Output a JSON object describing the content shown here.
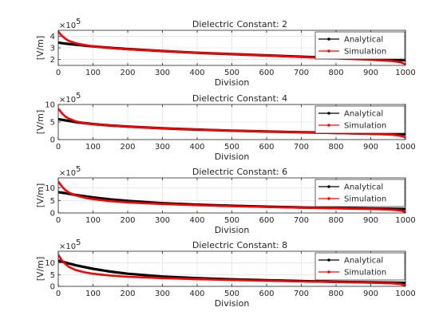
{
  "colors": {
    "analytical": "#000000",
    "simulation": "#ff0000",
    "grid": "#dcdcdc",
    "axes": "#262626",
    "background": "#ffffff"
  },
  "chart_data": [
    {
      "type": "line",
      "title": "Dielectric Constant: 2",
      "xlabel": "Division",
      "ylabel": "[V/m]",
      "y_exponent_label": "×10",
      "y_exponent": "5",
      "xlim": [
        0,
        1000
      ],
      "ylim": [
        1.5,
        4.5
      ],
      "xticks": [
        "0",
        "100",
        "200",
        "300",
        "400",
        "500",
        "600",
        "700",
        "800",
        "900",
        "1000"
      ],
      "yticks": [
        "2",
        "3",
        "4"
      ],
      "grid": true,
      "legend_position": "top-right",
      "legend": [
        "Analytical",
        "Simulation"
      ],
      "series": [
        {
          "name": "Analytical",
          "x": [
            0,
            25,
            50,
            100,
            150,
            200,
            300,
            400,
            500,
            600,
            700,
            800,
            900,
            1000
          ],
          "values": [
            3.45,
            3.35,
            3.27,
            3.12,
            3.0,
            2.9,
            2.73,
            2.58,
            2.46,
            2.35,
            2.24,
            2.13,
            2.03,
            1.93
          ]
        },
        {
          "name": "Simulation",
          "x": [
            0,
            5,
            10,
            20,
            30,
            50,
            75,
            100,
            150,
            200,
            300,
            400,
            500,
            600,
            700,
            800,
            900,
            960,
            985,
            995,
            1000
          ],
          "values": [
            4.4,
            4.2,
            4.05,
            3.8,
            3.6,
            3.4,
            3.25,
            3.12,
            2.98,
            2.88,
            2.72,
            2.58,
            2.46,
            2.34,
            2.22,
            2.1,
            1.98,
            1.88,
            1.78,
            1.66,
            1.6
          ]
        }
      ]
    },
    {
      "type": "line",
      "title": "Dielectric Constant: 4",
      "xlabel": "Division",
      "ylabel": "[V/m]",
      "y_exponent_label": "×10",
      "y_exponent": "5",
      "xlim": [
        0,
        1000
      ],
      "ylim": [
        0,
        10
      ],
      "xticks": [
        "0",
        "100",
        "200",
        "300",
        "400",
        "500",
        "600",
        "700",
        "800",
        "900",
        "1000"
      ],
      "yticks": [
        "0",
        "5",
        "10"
      ],
      "grid": true,
      "legend_position": "top-right",
      "legend": [
        "Analytical",
        "Simulation"
      ],
      "series": [
        {
          "name": "Analytical",
          "x": [
            0,
            25,
            50,
            100,
            150,
            200,
            300,
            400,
            500,
            600,
            700,
            800,
            900,
            1000
          ],
          "values": [
            5.8,
            5.4,
            5.0,
            4.4,
            4.0,
            3.7,
            3.2,
            2.85,
            2.55,
            2.3,
            2.1,
            1.9,
            1.7,
            1.5
          ]
        },
        {
          "name": "Simulation",
          "x": [
            0,
            5,
            10,
            20,
            30,
            50,
            75,
            100,
            150,
            200,
            300,
            400,
            500,
            600,
            700,
            800,
            900,
            960,
            985,
            995,
            1000
          ],
          "values": [
            8.8,
            8.2,
            7.6,
            6.6,
            6.0,
            5.2,
            4.7,
            4.35,
            3.95,
            3.65,
            3.2,
            2.85,
            2.55,
            2.3,
            2.08,
            1.85,
            1.6,
            1.4,
            1.1,
            0.8,
            0.6
          ]
        }
      ]
    },
    {
      "type": "line",
      "title": "Dielectric Constant: 6",
      "xlabel": "Division",
      "ylabel": "[V/m]",
      "y_exponent_label": "×10",
      "y_exponent": "5",
      "xlim": [
        0,
        1000
      ],
      "ylim": [
        0,
        14
      ],
      "xticks": [
        "0",
        "100",
        "200",
        "300",
        "400",
        "500",
        "600",
        "700",
        "800",
        "900",
        "1000"
      ],
      "yticks": [
        "0",
        "5",
        "10"
      ],
      "grid": true,
      "legend_position": "top-right",
      "legend": [
        "Analytical",
        "Simulation"
      ],
      "series": [
        {
          "name": "Analytical",
          "x": [
            0,
            25,
            50,
            100,
            150,
            200,
            300,
            400,
            500,
            600,
            700,
            800,
            900,
            1000
          ],
          "values": [
            8.3,
            7.8,
            7.2,
            6.2,
            5.4,
            4.8,
            3.9,
            3.3,
            2.85,
            2.5,
            2.2,
            1.95,
            1.75,
            1.55
          ]
        },
        {
          "name": "Simulation",
          "x": [
            0,
            5,
            10,
            20,
            30,
            50,
            75,
            100,
            150,
            200,
            300,
            400,
            500,
            600,
            700,
            800,
            900,
            960,
            985,
            995,
            1000
          ],
          "values": [
            12.5,
            11.6,
            10.7,
            9.2,
            8.2,
            7.0,
            6.1,
            5.5,
            4.7,
            4.2,
            3.55,
            3.1,
            2.7,
            2.4,
            2.1,
            1.85,
            1.55,
            1.3,
            1.0,
            0.6,
            0.4
          ]
        }
      ]
    },
    {
      "type": "line",
      "title": "Dielectric Constant: 8",
      "xlabel": "Division",
      "ylabel": "[V/m]",
      "y_exponent_label": "×10",
      "y_exponent": "5",
      "xlim": [
        0,
        1000
      ],
      "ylim": [
        0,
        15
      ],
      "xticks": [
        "0",
        "100",
        "200",
        "300",
        "400",
        "500",
        "600",
        "700",
        "800",
        "900",
        "1000"
      ],
      "yticks": [
        "0",
        "5",
        "10"
      ],
      "grid": true,
      "legend_position": "top-right",
      "legend": [
        "Analytical",
        "Simulation"
      ],
      "series": [
        {
          "name": "Analytical",
          "x": [
            0,
            25,
            50,
            100,
            150,
            200,
            300,
            400,
            500,
            600,
            700,
            800,
            900,
            1000
          ],
          "values": [
            11.0,
            10.0,
            9.0,
            7.5,
            6.3,
            5.4,
            4.2,
            3.5,
            3.0,
            2.6,
            2.25,
            1.95,
            1.7,
            1.5
          ]
        },
        {
          "name": "Simulation",
          "x": [
            0,
            5,
            10,
            20,
            30,
            50,
            75,
            100,
            150,
            200,
            300,
            400,
            500,
            600,
            700,
            800,
            900,
            960,
            985,
            995,
            1000
          ],
          "values": [
            13.5,
            12.3,
            11.2,
            9.6,
            8.4,
            7.0,
            6.0,
            5.4,
            4.6,
            4.1,
            3.5,
            3.05,
            2.7,
            2.4,
            2.1,
            1.85,
            1.55,
            1.3,
            1.0,
            0.6,
            0.4
          ]
        }
      ]
    }
  ]
}
